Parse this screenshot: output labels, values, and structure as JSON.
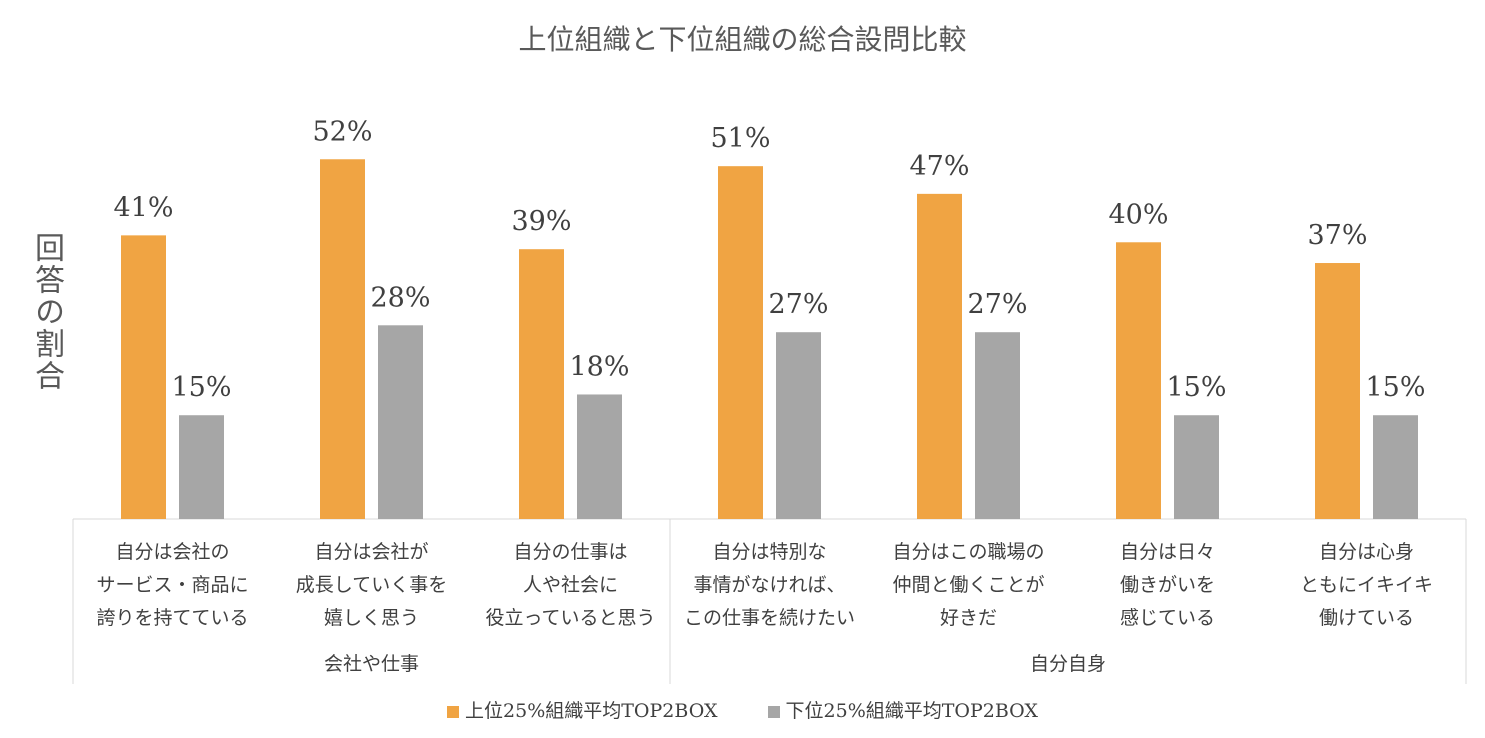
{
  "chart_data": {
    "type": "bar",
    "title": "上位組織と下位組織の総合設問比較",
    "ylabel": "回答の割合",
    "ylim": [
      0,
      0.61
    ],
    "categories": [
      [
        "自分は会社の",
        "サービス・商品に",
        "誇りを持てている"
      ],
      [
        "自分は会社が",
        "成長していく事を",
        "嬉しく思う"
      ],
      [
        "自分の仕事は",
        "人や社会に",
        "役立っていると思う"
      ],
      [
        "自分は特別な",
        "事情がなければ、",
        "この仕事を続けたい"
      ],
      [
        "自分はこの職場の",
        "仲間と働くことが",
        "好きだ"
      ],
      [
        "自分は日々",
        "働きがいを",
        "感じている"
      ],
      [
        "自分は心身",
        "ともにイキイキ",
        "働けている"
      ]
    ],
    "groups": [
      {
        "label": "会社や仕事",
        "span": 3
      },
      {
        "label": "自分自身",
        "span": 4
      }
    ],
    "series": [
      {
        "name": "上位25%組織平均TOP2BOX",
        "color": "#F0A443",
        "values": [
          0.41,
          0.52,
          0.39,
          0.51,
          0.47,
          0.4,
          0.37
        ],
        "labels": [
          "41%",
          "52%",
          "39%",
          "51%",
          "47%",
          "40%",
          "37%"
        ]
      },
      {
        "name": "下位25%組織平均TOP2BOX",
        "color": "#A6A6A6",
        "values": [
          0.15,
          0.28,
          0.18,
          0.27,
          0.27,
          0.15,
          0.15
        ],
        "labels": [
          "15%",
          "28%",
          "18%",
          "27%",
          "27%",
          "15%",
          "15%"
        ]
      }
    ],
    "legend": "bottom"
  }
}
